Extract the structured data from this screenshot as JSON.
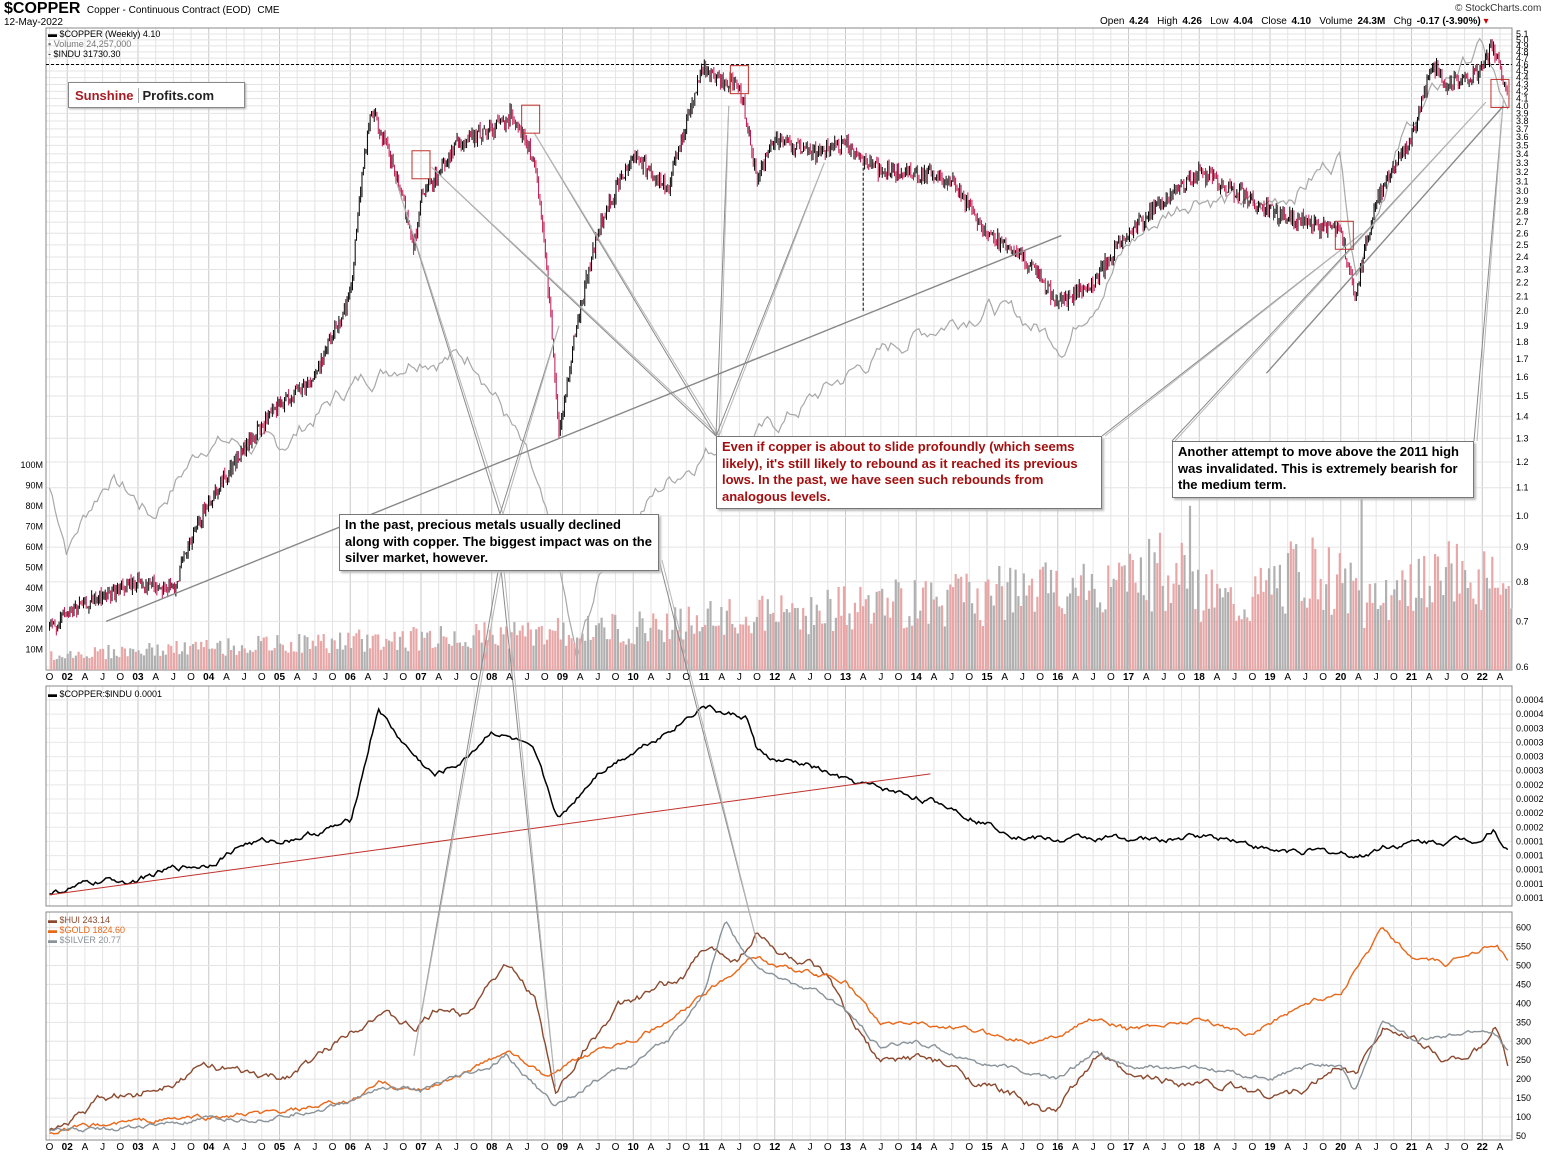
{
  "header": {
    "symbol": "$COPPER",
    "subtitle": "Copper - Continuous Contract (EOD)",
    "exchange": "CME",
    "date": "12-May-2022",
    "source": "© StockCharts.com",
    "quote": {
      "open_label": "Open",
      "open": "4.24",
      "high_label": "High",
      "high": "4.26",
      "low_label": "Low",
      "low": "4.04",
      "close_label": "Close",
      "close": "4.10",
      "volume_label": "Volume",
      "volume": "24.3M",
      "chg_label": "Chg",
      "chg": "-0.17 (-3.90%)"
    }
  },
  "logo": {
    "part1": "Sunshine",
    "part2": "Profits.com"
  },
  "legends": {
    "copper": "$COPPER (Weekly) 4.10",
    "volume": "Volume 24,257,000",
    "indu": "$INDU 31730.30",
    "ratio": "$COPPER:$INDU 0.0001",
    "hui": "$HUI 243.14",
    "gold": "$GOLD 1824.60",
    "silver": "$SILVER 20.77"
  },
  "annotations": [
    {
      "text": "Even if copper is about to slide profoundly (which seems likely), it's still likely to rebound as it reached its previous lows. In the past, we have seen such rebounds from analogous levels."
    },
    {
      "text": "Another attempt to move above the 2011 high was invalidated. This is extremely bearish for the medium term."
    },
    {
      "text": "In the past, precious metals usually declined along with copper. The biggest impact was on the silver market, however."
    }
  ],
  "chart_data": [
    {
      "type": "line",
      "series": [
        {
          "name": "$COPPER",
          "style": "weekly candles",
          "color": "#000000",
          "x": [
            2001.75,
            2002.0,
            2002.5,
            2003.0,
            2003.5,
            2004.0,
            2004.5,
            2005.0,
            2005.5,
            2006.0,
            2006.3,
            2006.5,
            2006.9,
            2007.0,
            2007.5,
            2008.0,
            2008.3,
            2008.6,
            2008.95,
            2009.5,
            2010.0,
            2010.5,
            2011.0,
            2011.1,
            2011.5,
            2011.75,
            2012.0,
            2012.5,
            2013.0,
            2013.5,
            2014.0,
            2014.5,
            2015.0,
            2015.5,
            2016.0,
            2016.5,
            2017.0,
            2017.5,
            2018.0,
            2018.5,
            2019.0,
            2019.5,
            2020.0,
            2020.2,
            2020.5,
            2021.0,
            2021.3,
            2021.5,
            2022.0,
            2022.15,
            2022.36
          ],
          "y": [
            0.68,
            0.72,
            0.76,
            0.8,
            0.78,
            1.05,
            1.25,
            1.45,
            1.6,
            2.1,
            3.95,
            3.5,
            2.5,
            2.9,
            3.5,
            3.7,
            3.9,
            3.3,
            1.3,
            2.6,
            3.4,
            3.0,
            4.6,
            4.4,
            4.3,
            3.1,
            3.6,
            3.4,
            3.5,
            3.2,
            3.2,
            3.1,
            2.6,
            2.4,
            2.05,
            2.2,
            2.6,
            2.9,
            3.2,
            3.0,
            2.8,
            2.7,
            2.6,
            2.1,
            2.9,
            3.6,
            4.6,
            4.3,
            4.5,
            4.9,
            4.1
          ]
        },
        {
          "name": "$INDU",
          "color": "#aaaaaa"
        },
        {
          "name": "Volume",
          "color": "#e8a6a6"
        }
      ],
      "x_ticks": [
        "O",
        "02",
        "A",
        "J",
        "O",
        "03",
        "A",
        "J",
        "O",
        "04",
        "A",
        "J",
        "O",
        "05",
        "A",
        "J",
        "O",
        "06",
        "A",
        "J",
        "O",
        "07",
        "A",
        "J",
        "O",
        "08",
        "A",
        "J",
        "O",
        "09",
        "A",
        "J",
        "O",
        "10",
        "A",
        "J",
        "O",
        "11",
        "A",
        "J",
        "O",
        "12",
        "A",
        "J",
        "O",
        "13",
        "A",
        "J",
        "O",
        "14",
        "A",
        "J",
        "O",
        "15",
        "A",
        "J",
        "O",
        "16",
        "A",
        "J",
        "O",
        "17",
        "A",
        "J",
        "O",
        "18",
        "A",
        "J",
        "O",
        "19",
        "A",
        "J",
        "O",
        "20",
        "A",
        "J",
        "O",
        "21",
        "A",
        "J",
        "O",
        "22",
        "A"
      ],
      "yticks_right": [
        "5.1",
        "5.0",
        "4.9",
        "4.8",
        "4.7",
        "4.6",
        "4.5",
        "4.4",
        "4.3",
        "4.2",
        "4.1",
        "4.0",
        "3.9",
        "3.8",
        "3.7",
        "3.6",
        "3.5",
        "3.4",
        "3.3",
        "3.2",
        "3.1",
        "3.0",
        "2.9",
        "2.8",
        "2.7",
        "2.6",
        "2.5",
        "2.4",
        "2.3",
        "2.2",
        "2.1",
        "2.0",
        "1.9",
        "1.8",
        "1.7",
        "1.6",
        "1.5",
        "1.4",
        "1.3",
        "1.2",
        "1.1",
        "1.0",
        "0.9",
        "0.8",
        "0.7",
        "0.6"
      ],
      "yticks_left": [
        "100M",
        "90M",
        "80M",
        "70M",
        "60M",
        "50M",
        "40M",
        "30M",
        "20M",
        "10M"
      ]
    },
    {
      "type": "line",
      "series": [
        {
          "name": "$COPPER:$INDU",
          "color": "#000000",
          "x": [
            2001.75,
            2002.5,
            2003.0,
            2003.5,
            2004.0,
            2004.5,
            2005.0,
            2005.5,
            2006.0,
            2006.4,
            2006.6,
            2006.9,
            2007.2,
            2007.6,
            2008.0,
            2008.4,
            2008.6,
            2008.95,
            2009.5,
            2010.0,
            2010.5,
            2011.0,
            2011.3,
            2011.6,
            2011.75,
            2012.0,
            2012.5,
            2013.0,
            2013.5,
            2014.0,
            2014.5,
            2015.0,
            2015.5,
            2016.0,
            2016.5,
            2017.0,
            2017.5,
            2018.0,
            2018.5,
            2019.0,
            2019.5,
            2020.0,
            2020.3,
            2020.6,
            2021.0,
            2021.5,
            2022.0,
            2022.15,
            2022.36
          ],
          "y": [
            0.34,
            0.55,
            0.6,
            0.8,
            0.9,
            1.3,
            1.35,
            1.5,
            1.7,
            3.95,
            3.5,
            3.0,
            2.6,
            2.9,
            3.5,
            3.25,
            3.0,
            1.75,
            2.7,
            3.1,
            3.5,
            4.0,
            3.8,
            3.75,
            3.1,
            2.9,
            2.8,
            2.5,
            2.35,
            2.2,
            2.0,
            1.7,
            1.45,
            1.35,
            1.4,
            1.4,
            1.35,
            1.45,
            1.4,
            1.15,
            1.15,
            1.1,
            1.05,
            1.25,
            1.3,
            1.35,
            1.4,
            1.6,
            1.2
          ]
        },
        {
          "name": "trend",
          "color": "#c0302b",
          "x": [
            2001.75,
            2014.2
          ],
          "y": [
            0.3,
            2.65
          ]
        }
      ],
      "yticks_right": [
        "0.0004",
        "0.0004",
        "0.0003",
        "0.0003",
        "0.0003",
        "0.0003",
        "0.0002",
        "0.0002",
        "0.0002",
        "0.0002",
        "0.0001",
        "0.0001",
        "0.0001",
        "0.0001",
        "0.0001"
      ]
    },
    {
      "type": "line",
      "series": [
        {
          "name": "$HUI",
          "color": "#8b4a2f",
          "x": [
            2001.75,
            2002.2,
            2002.5,
            2003.0,
            2003.5,
            2004.0,
            2004.5,
            2005.0,
            2005.5,
            2006.0,
            2006.4,
            2006.9,
            2007.3,
            2007.6,
            2008.0,
            2008.2,
            2008.6,
            2008.9,
            2009.3,
            2009.8,
            2010.2,
            2010.7,
            2011.0,
            2011.5,
            2011.75,
            2012.0,
            2012.5,
            2012.8,
            2013.0,
            2013.5,
            2014.0,
            2014.5,
            2015.0,
            2015.5,
            2015.8,
            2016.0,
            2016.6,
            2017.0,
            2017.5,
            2018.0,
            2018.5,
            2019.0,
            2019.5,
            2020.0,
            2020.2,
            2020.6,
            2021.0,
            2021.5,
            2022.0,
            2022.2,
            2022.36
          ],
          "y": [
            60,
            110,
            150,
            160,
            200,
            240,
            210,
            200,
            250,
            330,
            380,
            330,
            390,
            370,
            470,
            500,
            420,
            160,
            280,
            390,
            420,
            470,
            540,
            520,
            590,
            540,
            500,
            450,
            370,
            240,
            260,
            230,
            180,
            150,
            110,
            120,
            270,
            200,
            200,
            190,
            180,
            160,
            170,
            240,
            210,
            350,
            300,
            250,
            280,
            340,
            243
          ]
        },
        {
          "name": "$GOLD",
          "color": "#e8681a",
          "x": [
            2001.75,
            2003.0,
            2004.0,
            2005.0,
            2006.0,
            2006.4,
            2007.0,
            2008.0,
            2008.2,
            2008.8,
            2009.5,
            2010.0,
            2010.5,
            2011.0,
            2011.7,
            2012.0,
            2012.5,
            2013.0,
            2013.5,
            2014.0,
            2015.0,
            2015.8,
            2016.5,
            2017.0,
            2018.0,
            2018.7,
            2019.0,
            2019.5,
            2020.0,
            2020.6,
            2021.0,
            2021.5,
            2022.0,
            2022.2,
            2022.36
          ],
          "y": [
            60,
            90,
            100,
            110,
            140,
            190,
            170,
            250,
            280,
            200,
            280,
            310,
            350,
            420,
            530,
            500,
            480,
            460,
            340,
            350,
            320,
            300,
            360,
            330,
            360,
            320,
            350,
            400,
            430,
            600,
            520,
            500,
            550,
            560,
            520
          ]
        },
        {
          "name": "$SILVER",
          "color": "#8a9399",
          "x": [
            2001.75,
            2003.0,
            2004.0,
            2005.0,
            2006.0,
            2006.4,
            2007.0,
            2008.0,
            2008.2,
            2008.9,
            2009.5,
            2010.0,
            2010.5,
            2011.0,
            2011.3,
            2011.6,
            2012.0,
            2012.5,
            2013.0,
            2013.5,
            2014.0,
            2015.0,
            2016.0,
            2016.5,
            2017.0,
            2018.0,
            2019.0,
            2019.5,
            2020.0,
            2020.2,
            2020.6,
            2021.0,
            2021.5,
            2022.0,
            2022.2,
            2022.36
          ],
          "y": [
            60,
            75,
            90,
            100,
            140,
            180,
            170,
            230,
            260,
            130,
            200,
            240,
            300,
            430,
            620,
            520,
            470,
            440,
            380,
            280,
            300,
            240,
            200,
            270,
            230,
            230,
            200,
            230,
            240,
            170,
            350,
            310,
            310,
            330,
            320,
            270
          ]
        }
      ],
      "yticks_right": [
        "600",
        "550",
        "500",
        "450",
        "400",
        "350",
        "300",
        "250",
        "200",
        "150",
        "100",
        "50"
      ]
    }
  ]
}
